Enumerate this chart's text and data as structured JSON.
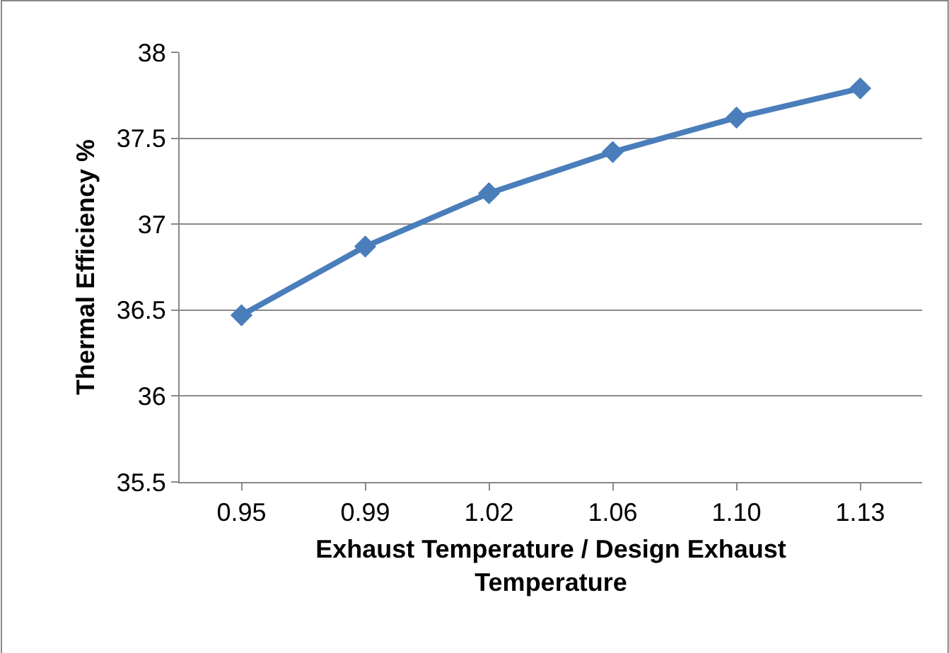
{
  "chart_data": {
    "type": "line",
    "xlabel": "Exhaust Temperature / Design Exhaust Temperature",
    "ylabel": "Thermal Efficiency %",
    "categories": [
      "0.95",
      "0.99",
      "1.02",
      "1.06",
      "1.10",
      "1.13"
    ],
    "series": [
      {
        "color": "#4a7ebb",
        "values": [
          36.47,
          36.87,
          37.18,
          37.42,
          37.62,
          37.79
        ]
      }
    ],
    "ylim": [
      35.5,
      38
    ],
    "yticks": [
      35.5,
      36,
      36.5,
      37,
      37.5,
      38
    ],
    "grid": "y",
    "marker": "diamond",
    "line_style": "solid"
  }
}
